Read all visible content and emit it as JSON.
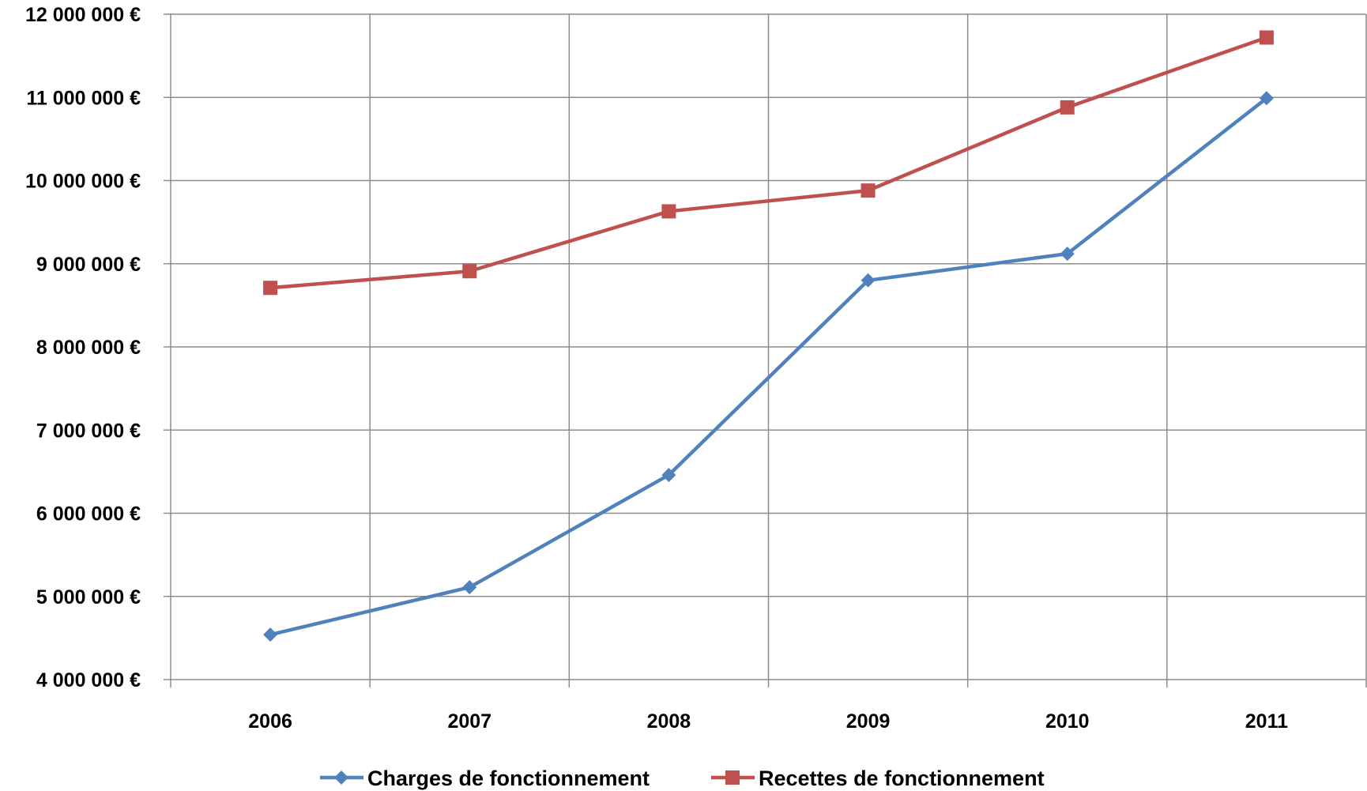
{
  "chart_data": {
    "type": "line",
    "categories": [
      "2006",
      "2007",
      "2008",
      "2009",
      "2010",
      "2011"
    ],
    "ylim": [
      4000000,
      12000000
    ],
    "y_ticks": [
      {
        "value": 12000000,
        "label": "12 000 000 €"
      },
      {
        "value": 11000000,
        "label": "11 000 000 €"
      },
      {
        "value": 10000000,
        "label": "10 000 000 €"
      },
      {
        "value": 9000000,
        "label": "9 000 000 €"
      },
      {
        "value": 8000000,
        "label": "8 000 000 €"
      },
      {
        "value": 7000000,
        "label": "7 000 000 €"
      },
      {
        "value": 6000000,
        "label": "6 000 000 €"
      },
      {
        "value": 5000000,
        "label": "5 000 000 €"
      },
      {
        "value": 4000000,
        "label": "4 000 000 €"
      }
    ],
    "grid": true,
    "legend_position": "bottom",
    "series": [
      {
        "name": "Charges de fonctionnement",
        "color": "#4F81BD",
        "marker": "diamond",
        "values": [
          4540000,
          5110000,
          6460000,
          8800000,
          9120000,
          10990000
        ]
      },
      {
        "name": "Recettes de fonctionnement",
        "color": "#C0504D",
        "marker": "square",
        "values": [
          8710000,
          8910000,
          9630000,
          9880000,
          10880000,
          11720000
        ]
      }
    ]
  }
}
